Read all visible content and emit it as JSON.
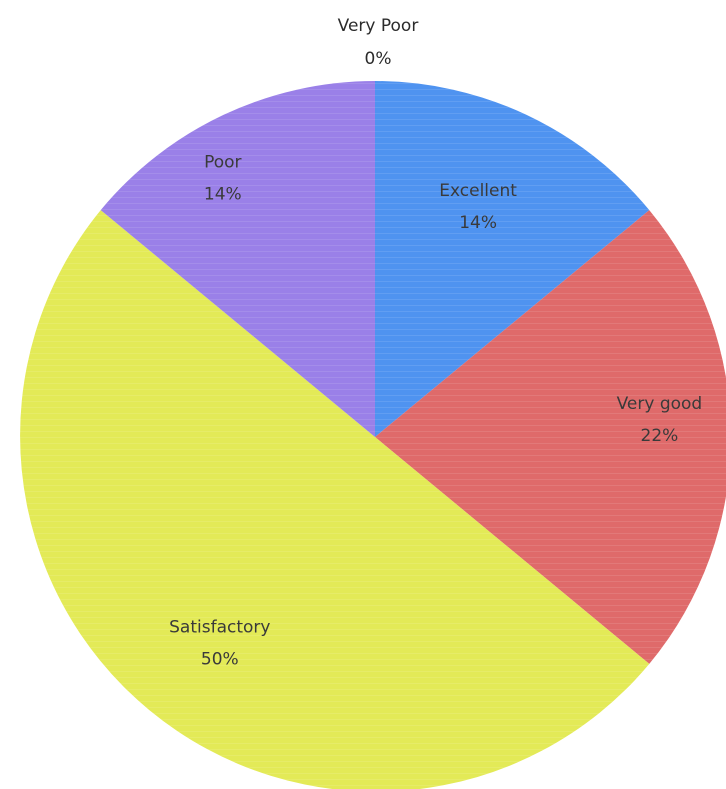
{
  "chart_data": {
    "type": "pie",
    "title": "",
    "slices": [
      {
        "label": "Very Poor",
        "value": 0,
        "value_label": "0%",
        "color": "#ffffff"
      },
      {
        "label": "Excellent",
        "value": 14,
        "value_label": "14%",
        "color": "#4f93f0"
      },
      {
        "label": "Very good",
        "value": 22,
        "value_label": "22%",
        "color": "#df6a6a"
      },
      {
        "label": "Satisfactory",
        "value": 50,
        "value_label": "50%",
        "color": "#e3ea57"
      },
      {
        "label": "Poor",
        "value": 14,
        "value_label": "14%",
        "color": "#9a80e8"
      }
    ],
    "start_angle": "top",
    "direction": "clockwise",
    "legend": "none"
  }
}
